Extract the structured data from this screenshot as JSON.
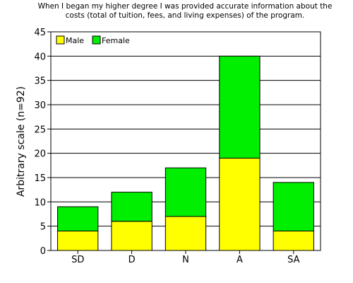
{
  "chart_data": {
    "type": "bar",
    "stacked": true,
    "title": [
      "When I began my higher degree I was provided accurate information about the",
      "costs (total of tuition, fees, and living expenses) of the program."
    ],
    "xlabel": "",
    "ylabel": "Arbitrary scale (n=92)",
    "categories": [
      "SD",
      "D",
      "N",
      "A",
      "SA"
    ],
    "series": [
      {
        "name": "Male",
        "color": "#ffff00",
        "values": [
          4,
          6,
          7,
          19,
          4
        ]
      },
      {
        "name": "Female",
        "color": "#00ee00",
        "values": [
          5,
          6,
          10,
          21,
          10
        ]
      }
    ],
    "ylim": [
      0,
      45
    ],
    "yticks": [
      0,
      5,
      10,
      15,
      20,
      25,
      30,
      35,
      40,
      45
    ],
    "grid": "horizontal",
    "legend": "top-left"
  }
}
